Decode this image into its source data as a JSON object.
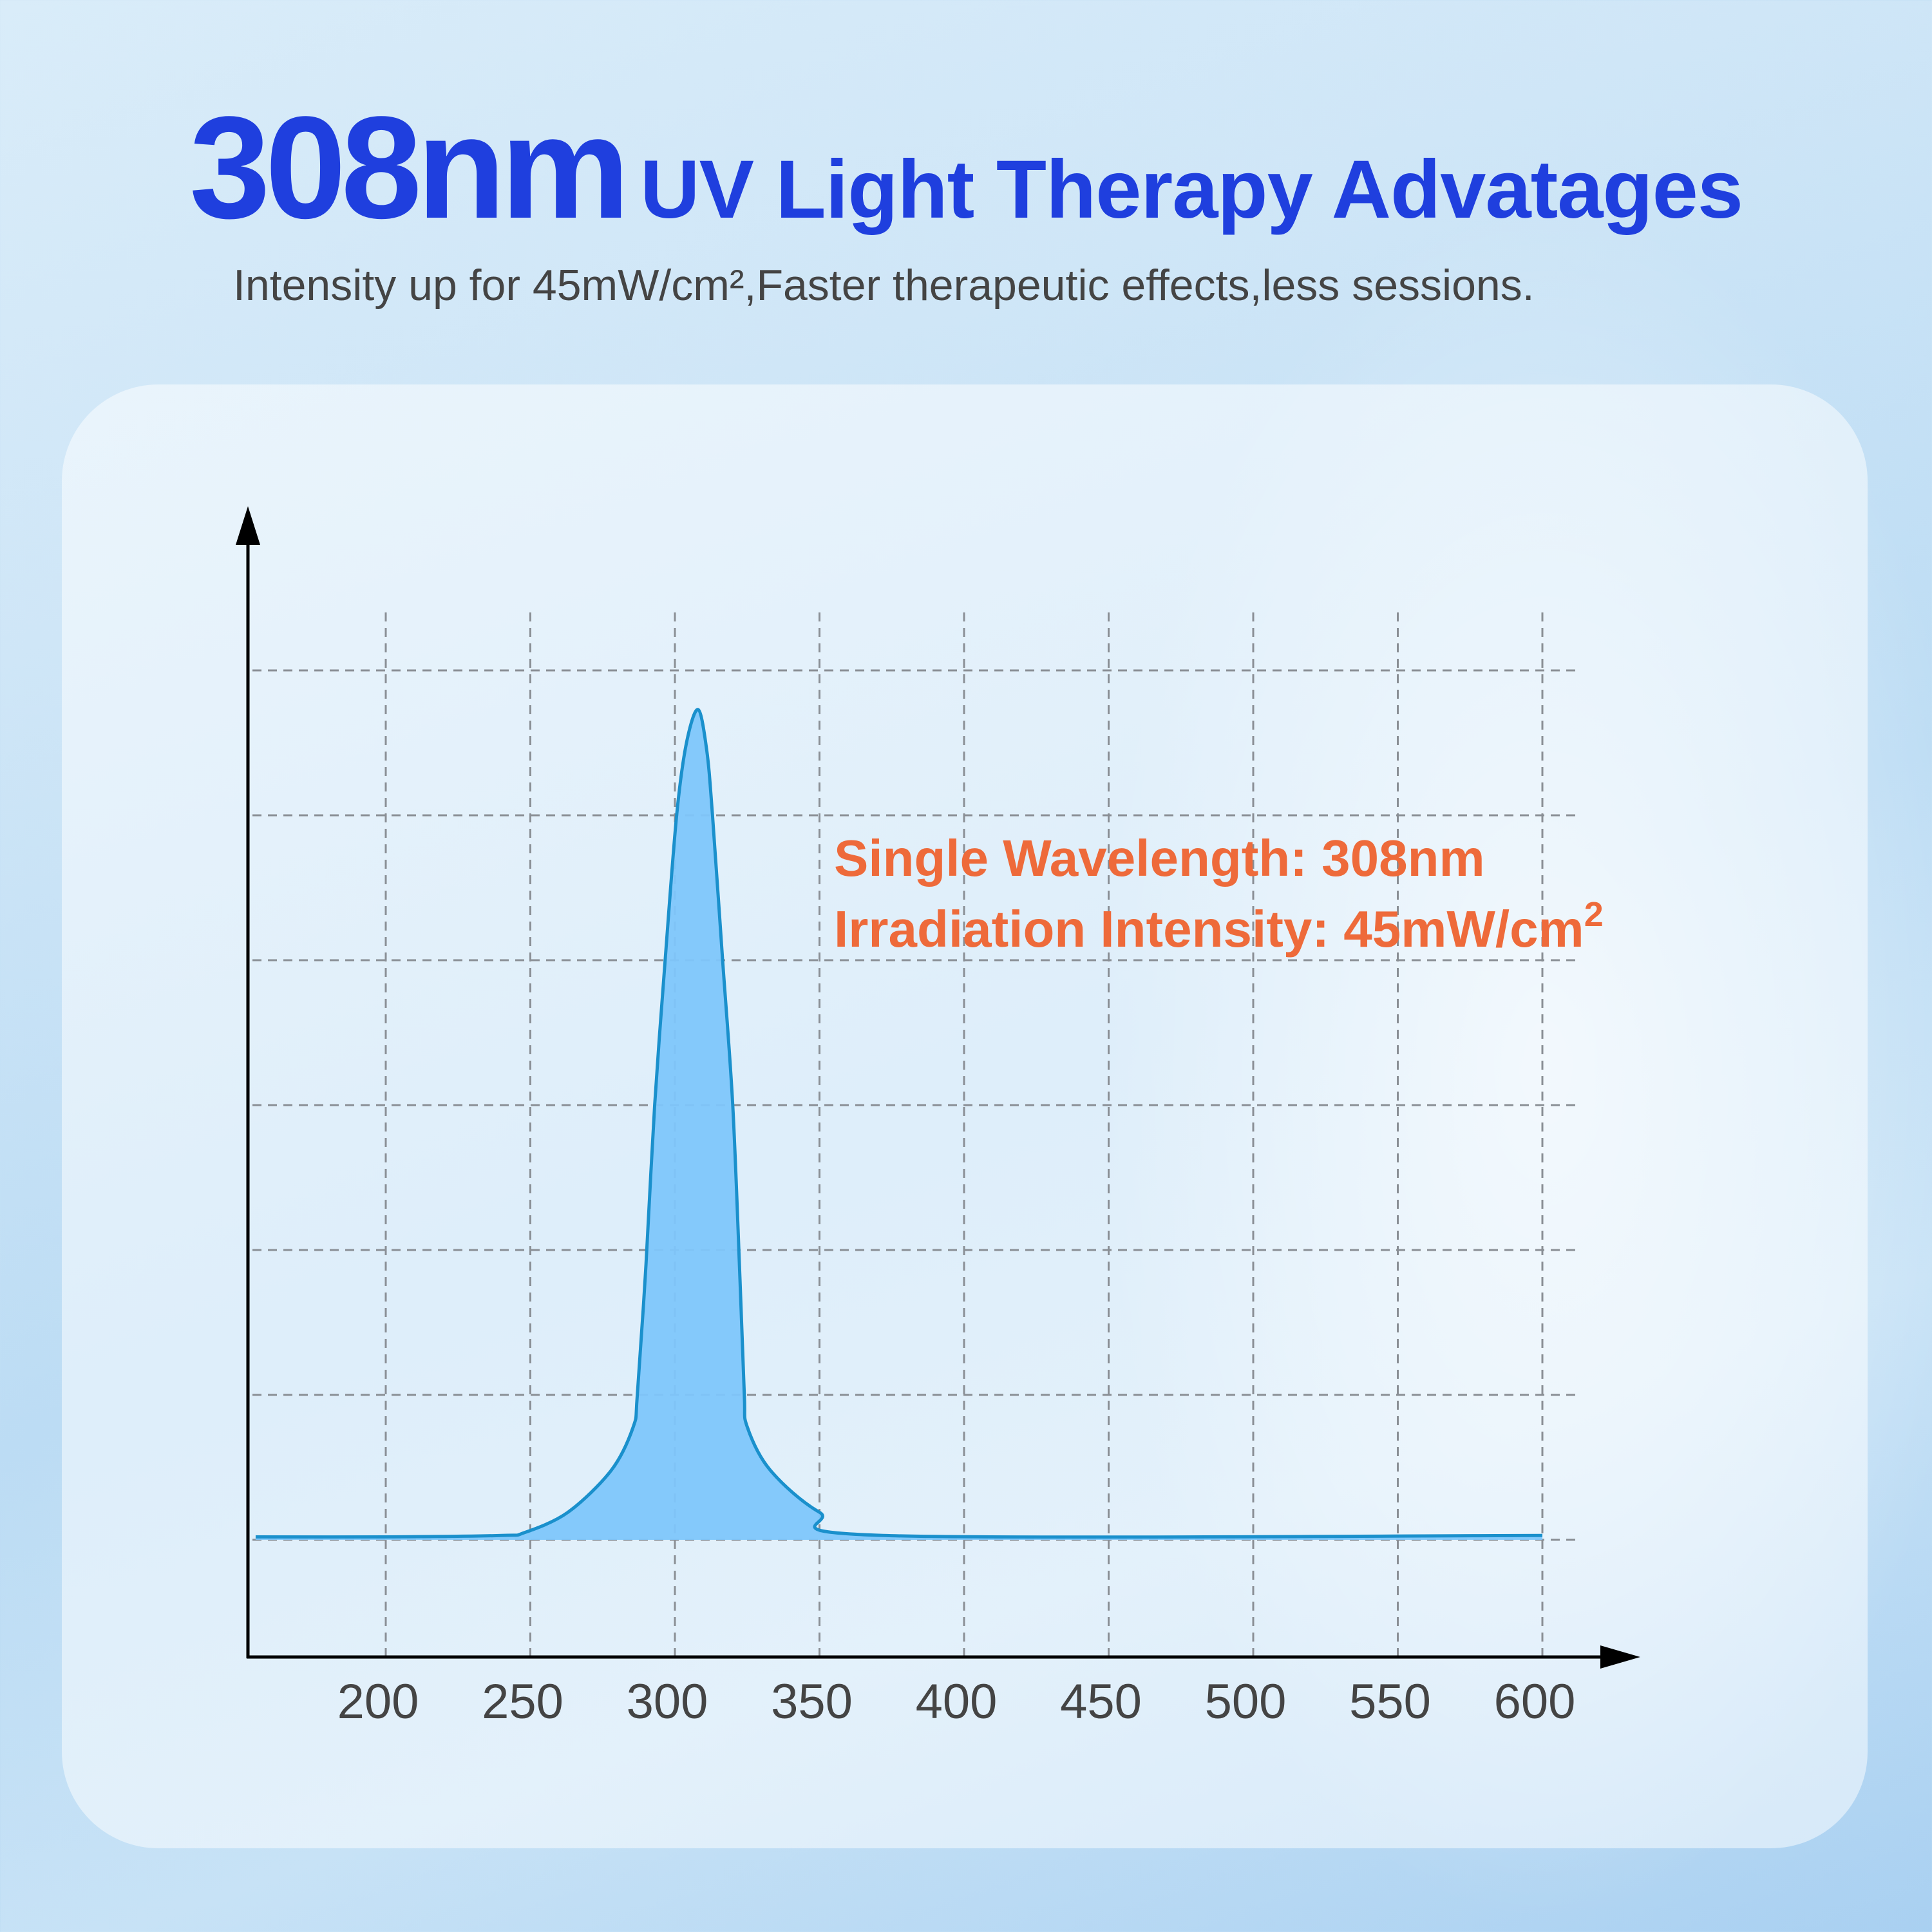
{
  "header": {
    "title_big": "308nm",
    "title_rest": "UV Light Therapy Advatages",
    "subtitle": "Intensity up for 45mW/cm²,Faster therapeutic effects,less sessions."
  },
  "colors": {
    "title": "#1f3fde",
    "annotation": "#ee6a3a",
    "curve": "#1a90cc",
    "fill": "#7ec6fb",
    "grid": "#8a8f95"
  },
  "chart_data": {
    "type": "area",
    "title": "",
    "xlabel": "",
    "ylabel": "",
    "xlim": [
      155,
      620
    ],
    "ylim": [
      -0.8,
      7
    ],
    "grid": true,
    "x_ticks": [
      200,
      250,
      300,
      350,
      400,
      450,
      500,
      550,
      600
    ],
    "x_tick_labels": [
      "200",
      "250",
      "300",
      "350",
      "400",
      "450",
      "500",
      "550",
      "600"
    ],
    "y_gridlines": [
      0,
      1,
      2,
      3,
      4,
      5,
      6
    ],
    "series": [
      {
        "x": [
          155,
          200,
          240,
          248,
          263,
          278,
          285.6,
          287,
          290,
          293,
          297,
          300.6,
          304,
          308,
          311,
          313,
          316.5,
          320,
          322.5,
          324,
          325,
          333,
          350,
          372,
          600
        ],
        "y": [
          0.02,
          0.02,
          0.03,
          0.05,
          0.19,
          0.48,
          0.78,
          1,
          1.9,
          3,
          4.1,
          5,
          5.5,
          5.73,
          5.45,
          5,
          4,
          3,
          1.8,
          1,
          0.78,
          0.48,
          0.19,
          0.03,
          0.03
        ]
      }
    ],
    "annotations": [
      "Single Wavelength:  308nm",
      "Irradiation Intensity: 45mW/cm",
      "2"
    ]
  }
}
